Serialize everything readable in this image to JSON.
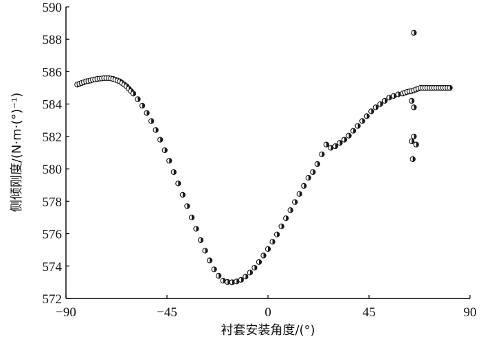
{
  "chart_data": {
    "type": "scatter",
    "title": "",
    "xlabel": "衬套安装角度/(°)",
    "ylabel": "侧倾刚度/(N·m·(°)⁻¹)",
    "xlim": [
      -90,
      90
    ],
    "ylim": [
      572,
      590
    ],
    "xticks": [
      -90,
      -45,
      0,
      45,
      90
    ],
    "yticks": [
      572,
      574,
      576,
      578,
      580,
      582,
      584,
      586,
      588,
      590
    ],
    "xtick_labels": [
      "−90",
      "−45",
      "0",
      "45",
      "90"
    ],
    "ytick_labels": [
      "572",
      "574",
      "576",
      "578",
      "580",
      "582",
      "584",
      "586",
      "588",
      "590"
    ],
    "grid": false,
    "legend": "none",
    "marker_color": "#1a1a1a",
    "series": [
      {
        "x": [
          -85,
          -84,
          -83,
          -82,
          -81,
          -80,
          -79,
          -78,
          -77,
          -76,
          -75,
          -74,
          -73,
          -72,
          -71,
          -70,
          -69,
          -68,
          -67,
          -66,
          -65,
          -64,
          -63,
          -62,
          -61,
          -60,
          -58,
          -56,
          -54,
          -52,
          -50,
          -48,
          -46,
          -44,
          -42,
          -40,
          -38,
          -36,
          -34,
          -32,
          -30,
          -28,
          -26,
          -24,
          -22,
          -20,
          -18,
          -16,
          -14,
          -12,
          -10,
          -8,
          -6,
          -4,
          -2,
          0,
          2,
          4,
          6,
          8,
          10,
          12,
          14,
          16,
          18,
          20,
          22,
          24,
          26,
          28,
          30,
          32,
          34,
          36,
          38,
          40,
          42,
          44,
          46,
          48,
          50,
          52,
          54,
          56,
          58,
          60,
          61,
          62,
          63,
          64,
          65,
          66,
          67,
          68,
          69,
          70,
          71,
          72,
          73,
          74,
          75,
          76,
          77,
          78,
          79,
          80,
          81,
          64,
          64,
          65,
          65,
          65,
          66,
          64.5
        ],
        "y": [
          585.2,
          585.25,
          585.3,
          585.35,
          585.4,
          585.42,
          585.45,
          585.5,
          585.52,
          585.55,
          585.57,
          585.58,
          585.6,
          585.6,
          585.6,
          585.58,
          585.55,
          585.5,
          585.45,
          585.4,
          585.3,
          585.2,
          585.1,
          584.95,
          584.8,
          584.65,
          584.3,
          583.9,
          583.45,
          582.95,
          582.4,
          581.8,
          581.15,
          580.5,
          579.8,
          579.1,
          578.4,
          577.7,
          577.0,
          576.3,
          575.6,
          574.95,
          574.35,
          573.8,
          573.4,
          573.1,
          573.02,
          573.0,
          573.05,
          573.15,
          573.35,
          573.6,
          573.9,
          574.25,
          574.65,
          575.05,
          575.5,
          575.95,
          576.45,
          576.95,
          577.45,
          577.95,
          578.45,
          578.95,
          579.45,
          579.8,
          580.3,
          580.9,
          581.5,
          581.3,
          581.4,
          581.6,
          581.8,
          582.05,
          582.35,
          582.65,
          582.95,
          583.25,
          583.55,
          583.8,
          584.0,
          584.2,
          584.4,
          584.5,
          584.6,
          584.65,
          584.7,
          584.75,
          584.78,
          584.8,
          584.85,
          584.9,
          584.95,
          585.0,
          585.0,
          585.0,
          585.0,
          585.0,
          585.0,
          585.0,
          585.0,
          585.0,
          585.0,
          585.0,
          585.0,
          585.0,
          585.0,
          584.2,
          581.7,
          588.4,
          583.8,
          582.0,
          581.5,
          580.6
        ]
      }
    ]
  }
}
